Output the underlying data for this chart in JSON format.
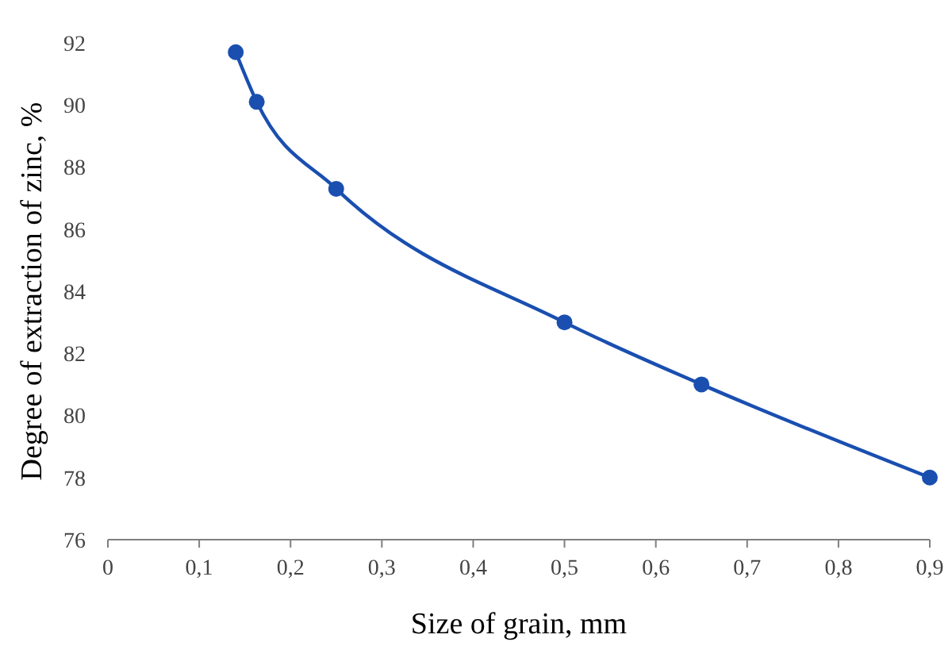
{
  "chart_data": {
    "type": "line",
    "xlabel": "Size of grain, mm",
    "ylabel": "Degree of extraction of zinc, %",
    "x": [
      0.14,
      0.163,
      0.25,
      0.5,
      0.65,
      0.9
    ],
    "series": [
      {
        "color": "#1a4fb0",
        "values": [
          91.7,
          90.1,
          87.3,
          83.0,
          81.0,
          78.0
        ]
      }
    ],
    "xlim": [
      0,
      0.9
    ],
    "ylim": [
      76,
      92
    ],
    "xticks": [
      0,
      {
        "value": 0.1,
        "label": "0,1"
      },
      {
        "value": 0.2,
        "label": "0,2"
      },
      {
        "value": 0.3,
        "label": "0,3"
      },
      {
        "value": 0.4,
        "label": "0,4"
      },
      {
        "value": 0.5,
        "label": "0,5"
      },
      {
        "value": 0.6,
        "label": "0,6"
      },
      {
        "value": 0.7,
        "label": "0,7"
      },
      {
        "value": 0.8,
        "label": "0,8"
      },
      {
        "value": 0.9,
        "label": "0,9"
      }
    ],
    "yticks": [
      76,
      78,
      80,
      82,
      84,
      86,
      88,
      90,
      92
    ],
    "grid": false,
    "marker": "circle",
    "line_style": "solid"
  }
}
